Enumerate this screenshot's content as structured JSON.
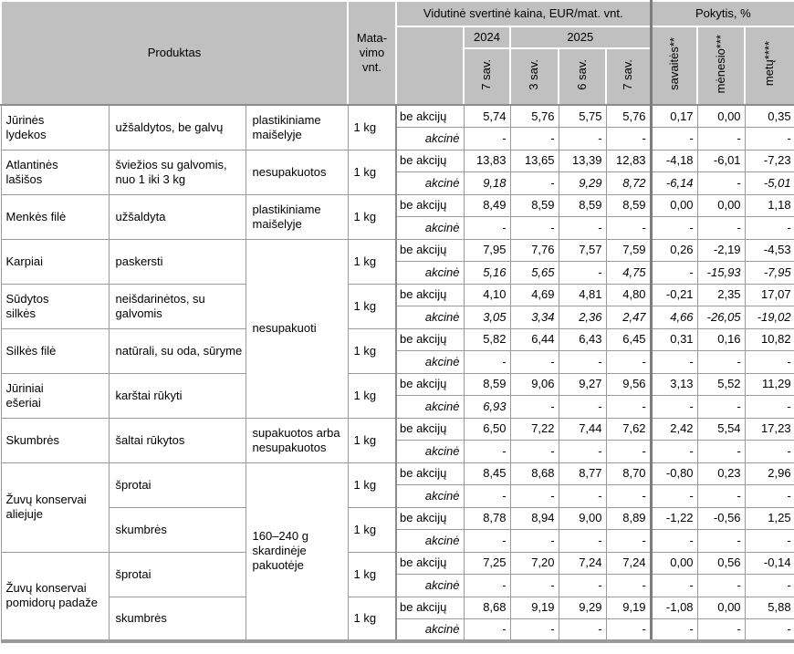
{
  "header": {
    "produktas": "Produktas",
    "matavimo_vnt": "Mata-\nvimo\nvnt.",
    "kaina": "Vidutinė svertinė kaina, EUR/mat. vnt.",
    "pokytis": "Pokytis, %",
    "year_2024": "2024",
    "year_2025": "2025",
    "week_cols": [
      "7 sav.",
      "3 sav.",
      "6 sav.",
      "7 sav."
    ],
    "change_cols": [
      "savaitės**",
      "mėnesio***",
      "metų****"
    ]
  },
  "labels": {
    "regular": "be akcijų",
    "promo": "akcinė"
  },
  "products": [
    {
      "name": "Jūrinės\nlydekos",
      "description": "užšaldytos, be galvų",
      "packaging": "plastikiniame\nmaišelyje",
      "unit": "1 kg",
      "regular": [
        "5,74",
        "5,76",
        "5,75",
        "5,76",
        "0,17",
        "0,00",
        "0,35"
      ],
      "promo": [
        "-",
        "-",
        "-",
        "-",
        "-",
        "-",
        "-"
      ]
    },
    {
      "name": "Atlantinės\nlašišos",
      "description": "šviežios su galvomis,\nnuo 1 iki 3 kg",
      "packaging": "nesupakuotos",
      "unit": "1 kg",
      "regular": [
        "13,83",
        "13,65",
        "13,39",
        "12,83",
        "-4,18",
        "-6,01",
        "-7,23"
      ],
      "promo": [
        "9,18",
        "-",
        "9,29",
        "8,72",
        "-6,14",
        "-",
        "-5,01"
      ]
    },
    {
      "name": "Menkės filė",
      "description": "užšaldyta",
      "packaging": "plastikiniame\nmaišelyje",
      "unit": "1 kg",
      "regular": [
        "8,49",
        "8,59",
        "8,59",
        "8,59",
        "0,00",
        "0,00",
        "1,18"
      ],
      "promo": [
        "-",
        "-",
        "-",
        "-",
        "-",
        "-",
        "-"
      ]
    },
    {
      "name": "Karpiai",
      "description": "paskersti",
      "packaging": "nesupakuoti",
      "unit": "1 kg",
      "regular": [
        "7,95",
        "7,76",
        "7,57",
        "7,59",
        "0,26",
        "-2,19",
        "-4,53"
      ],
      "promo": [
        "5,16",
        "5,65",
        "-",
        "4,75",
        "-",
        "-15,93",
        "-7,95"
      ]
    },
    {
      "name": "Sūdytos\nsilkės",
      "description": "neišdarinėtos, su\ngalvomis",
      "unit": "1 kg",
      "regular": [
        "4,10",
        "4,69",
        "4,81",
        "4,80",
        "-0,21",
        "2,35",
        "17,07"
      ],
      "promo": [
        "3,05",
        "3,34",
        "2,36",
        "2,47",
        "4,66",
        "-26,05",
        "-19,02"
      ]
    },
    {
      "name": "Silkės filė",
      "description": "natūrali, su oda, sūryme",
      "unit": "1 kg",
      "regular": [
        "5,82",
        "6,44",
        "6,43",
        "6,45",
        "0,31",
        "0,16",
        "10,82"
      ],
      "promo": [
        "-",
        "-",
        "-",
        "-",
        "-",
        "-",
        "-"
      ]
    },
    {
      "name": "Jūriniai\nešeriai",
      "description": "karštai rūkyti",
      "unit": "1 kg",
      "regular": [
        "8,59",
        "9,06",
        "9,27",
        "9,56",
        "3,13",
        "5,52",
        "11,29"
      ],
      "promo": [
        "6,93",
        "-",
        "-",
        "-",
        "-",
        "-",
        "-"
      ]
    },
    {
      "name": "Skumbrės",
      "description": "šaltai rūkytos",
      "packaging": "supakuotos arba\nnesupakuotos",
      "unit": "1 kg",
      "regular": [
        "6,50",
        "7,22",
        "7,44",
        "7,62",
        "2,42",
        "5,54",
        "17,23"
      ],
      "promo": [
        "-",
        "-",
        "-",
        "-",
        "-",
        "-",
        "-"
      ]
    },
    {
      "name": "Žuvų konservai\naliejuje",
      "description": "šprotai",
      "packaging": "160–240 g\nskardinėje\npakuotėje",
      "unit": "1 kg",
      "regular": [
        "8,45",
        "8,68",
        "8,77",
        "8,70",
        "-0,80",
        "0,23",
        "2,96"
      ],
      "promo": [
        "-",
        "-",
        "-",
        "-",
        "-",
        "-",
        "-"
      ]
    },
    {
      "description": "skumbrės",
      "unit": "1 kg",
      "regular": [
        "8,78",
        "8,94",
        "9,00",
        "8,89",
        "-1,22",
        "-0,56",
        "1,25"
      ],
      "promo": [
        "-",
        "-",
        "-",
        "-",
        "-",
        "-",
        "-"
      ]
    },
    {
      "name": "Žuvų konservai\npomidorų padaže",
      "description": "šprotai",
      "unit": "1 kg",
      "regular": [
        "7,25",
        "7,20",
        "7,24",
        "7,24",
        "0,00",
        "0,56",
        "-0,14"
      ],
      "promo": [
        "-",
        "-",
        "-",
        "-",
        "-",
        "-",
        "-"
      ]
    },
    {
      "description": "skumbrės",
      "unit": "1 kg",
      "regular": [
        "8,68",
        "9,19",
        "9,29",
        "9,19",
        "-1,08",
        "0,00",
        "5,88"
      ],
      "promo": [
        "-",
        "-",
        "-",
        "-",
        "-",
        "-",
        "-"
      ]
    }
  ]
}
